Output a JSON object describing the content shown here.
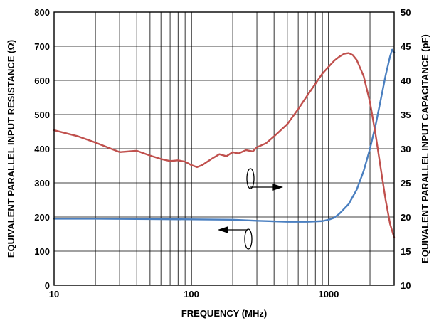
{
  "chart_data": {
    "type": "line",
    "title": "",
    "xlabel": "FREQUENCY (MHz)",
    "ylabel_left": "EQUIVALENT PARALLEL INPUT RESISTANCE (Ω)",
    "ylabel_right": "EQUIVALENT PARALLEL INPUT CAPACITANCE (pF)",
    "x_scale": "log",
    "xlim": [
      10,
      3000
    ],
    "ylim_left": [
      0,
      800
    ],
    "ylim_right": [
      10,
      50
    ],
    "grid": true,
    "x_ticks": [
      {
        "value": 10,
        "label": "10"
      },
      {
        "value": 100,
        "label": "100"
      },
      {
        "value": 1000,
        "label": "1000"
      }
    ],
    "y_ticks_left": [
      "0",
      "100",
      "200",
      "300",
      "400",
      "500",
      "600",
      "700",
      "800"
    ],
    "y_ticks_right": [
      "10",
      "15",
      "20",
      "25",
      "30",
      "35",
      "40",
      "45",
      "50"
    ],
    "colors": {
      "resistance": "#4a7fc0",
      "capacitance": "#c0504d",
      "grid": "#000000"
    },
    "series": [
      {
        "axis": "left",
        "color": "#4a7fc0",
        "x": [
          10,
          20,
          50,
          100,
          200,
          300,
          500,
          700,
          900,
          1000,
          1100,
          1200,
          1400,
          1600,
          1800,
          2000,
          2200,
          2400,
          2600,
          2800,
          2900,
          3000
        ],
        "y": [
          195,
          195,
          194,
          193,
          192,
          189,
          186,
          186,
          188,
          192,
          198,
          210,
          238,
          280,
          335,
          400,
          470,
          545,
          615,
          670,
          690,
          682
        ]
      },
      {
        "axis": "right",
        "color": "#c0504d",
        "x": [
          10,
          15,
          20,
          30,
          40,
          50,
          60,
          70,
          80,
          90,
          100,
          110,
          120,
          140,
          160,
          180,
          200,
          220,
          250,
          280,
          300,
          350,
          400,
          500,
          600,
          700,
          800,
          900,
          1000,
          1100,
          1200,
          1300,
          1400,
          1500,
          1600,
          1800,
          2000,
          2200,
          2400,
          2600,
          2800,
          3000
        ],
        "y": [
          32.7,
          31.8,
          30.9,
          29.5,
          29.7,
          29.0,
          28.5,
          28.2,
          28.3,
          28.1,
          27.6,
          27.3,
          27.6,
          28.5,
          29.2,
          28.9,
          29.5,
          29.3,
          29.8,
          29.6,
          30.2,
          30.8,
          31.8,
          33.6,
          35.8,
          37.8,
          39.5,
          41.0,
          42.0,
          42.9,
          43.5,
          43.9,
          44.0,
          43.7,
          43.0,
          40.6,
          36.8,
          32.0,
          27.0,
          22.5,
          19.0,
          17.0
        ]
      }
    ]
  }
}
